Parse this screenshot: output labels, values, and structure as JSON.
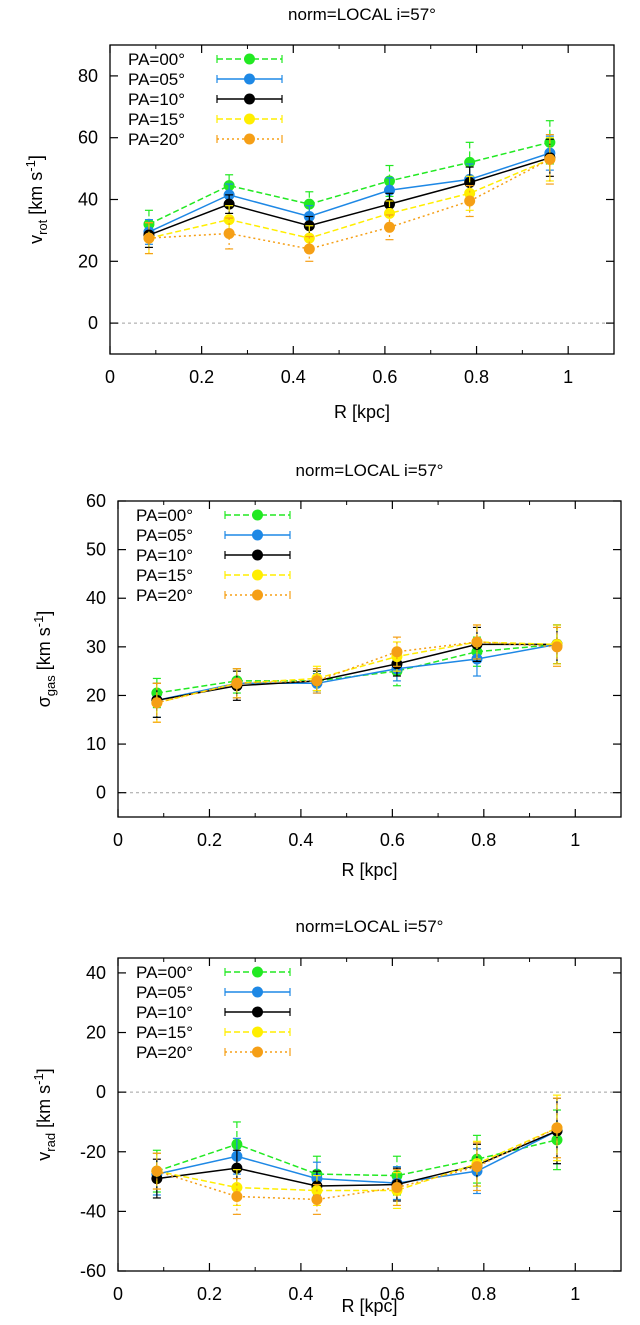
{
  "colors": {
    "PA=00°": "#22e922",
    "PA=05°": "#1e88e5",
    "PA=10°": "#000000",
    "PA=15°": "#ffee00",
    "PA=20°": "#f59f16",
    "zero_line": "#a0a0a0"
  },
  "chart_data": [
    {
      "type": "line",
      "title": "norm=LOCAL i=57°",
      "xlabel": "R [kpc]",
      "ylabel": {
        "base": "v",
        "sub": "rot",
        "unit_pre": " [km s",
        "sup": "-1",
        "unit_post": "]"
      },
      "xlim": [
        0,
        1.1
      ],
      "ylim": [
        -10,
        90
      ],
      "xticks": [
        0,
        0.2,
        0.4,
        0.6,
        0.8,
        1
      ],
      "xticklabels": [
        "0",
        "0.2",
        "0.4",
        "0.6",
        "0.8",
        "1"
      ],
      "yticks": [
        0,
        20,
        40,
        60,
        80
      ],
      "yticklabels": [
        "0",
        "20",
        "40",
        "60",
        "80"
      ],
      "zero_line": true,
      "legend_position": "top-left",
      "x": [
        0.085,
        0.26,
        0.435,
        0.61,
        0.785,
        0.96
      ],
      "series": [
        {
          "name": "PA=00°",
          "values": [
            32,
            44.5,
            38.5,
            46,
            52,
            58.5
          ],
          "errors": [
            4.5,
            3.5,
            4,
            5,
            6.5,
            7
          ],
          "line_style": "dashed"
        },
        {
          "name": "PA=05°",
          "values": [
            29.5,
            41.5,
            34.5,
            43,
            46.5,
            55
          ],
          "errors": [
            4,
            3.5,
            3.5,
            4,
            5,
            5.5
          ],
          "line_style": "solid"
        },
        {
          "name": "PA=10°",
          "values": [
            28.5,
            38.5,
            31.5,
            38.5,
            45.5,
            53.5
          ],
          "errors": [
            4,
            3,
            3,
            3.5,
            5,
            6
          ],
          "line_style": "solid"
        },
        {
          "name": "PA=15°",
          "values": [
            27.5,
            33.5,
            27.5,
            35.5,
            42,
            53
          ],
          "errors": [
            5,
            4.5,
            4,
            4,
            5.5,
            7
          ],
          "line_style": "dashed"
        },
        {
          "name": "PA=20°",
          "values": [
            27.5,
            29,
            24,
            31,
            39.5,
            53
          ],
          "errors": [
            5,
            5,
            4,
            4,
            5,
            8
          ],
          "line_style": "dotted"
        }
      ]
    },
    {
      "type": "line",
      "title": "norm=LOCAL i=57°",
      "xlabel": "R [kpc]",
      "ylabel": {
        "base": "σ",
        "sub": "gas",
        "unit_pre": " [km s",
        "sup": "-1",
        "unit_post": "]"
      },
      "xlim": [
        0,
        1.1
      ],
      "ylim": [
        -5,
        60
      ],
      "xticks": [
        0,
        0.2,
        0.4,
        0.6,
        0.8,
        1
      ],
      "xticklabels": [
        "0",
        "0.2",
        "0.4",
        "0.6",
        "0.8",
        "1"
      ],
      "yticks": [
        0,
        10,
        20,
        30,
        40,
        50,
        60
      ],
      "yticklabels": [
        "0",
        "10",
        "20",
        "30",
        "40",
        "50",
        "60"
      ],
      "zero_line": true,
      "legend_position": "top-left",
      "x": [
        0.085,
        0.26,
        0.435,
        0.61,
        0.785,
        0.96
      ],
      "series": [
        {
          "name": "PA=00°",
          "values": [
            20.5,
            23,
            23,
            25,
            29,
            30.5
          ],
          "errors": [
            3,
            2.5,
            2,
            3,
            3,
            4
          ],
          "line_style": "dashed"
        },
        {
          "name": "PA=05°",
          "values": [
            19,
            22.5,
            22.5,
            25.5,
            27.5,
            30.5
          ],
          "errors": [
            3.5,
            3,
            2,
            2.5,
            3.5,
            4
          ],
          "line_style": "solid"
        },
        {
          "name": "PA=10°",
          "values": [
            19,
            22,
            23,
            26.5,
            30.5,
            30.5
          ],
          "errors": [
            3.5,
            3,
            2,
            2.5,
            3.5,
            4
          ],
          "line_style": "solid"
        },
        {
          "name": "PA=15°",
          "values": [
            18.5,
            22.5,
            23.5,
            28,
            31,
            30.5
          ],
          "errors": [
            4,
            3,
            2.5,
            3,
            3.5,
            4
          ],
          "line_style": "dashed"
        },
        {
          "name": "PA=20°",
          "values": [
            18.5,
            22.5,
            23,
            29,
            31,
            30
          ],
          "errors": [
            4,
            3,
            2.5,
            3,
            3.5,
            4
          ],
          "line_style": "dotted"
        }
      ]
    },
    {
      "type": "line",
      "title": "norm=LOCAL i=57°",
      "xlabel": "R [kpc]",
      "ylabel": {
        "base": "v",
        "sub": "rad",
        "unit_pre": " [km s",
        "sup": "-1",
        "unit_post": "]"
      },
      "xlim": [
        0,
        1.1
      ],
      "ylim": [
        -60,
        45
      ],
      "xticks": [
        0,
        0.2,
        0.4,
        0.6,
        0.8,
        1
      ],
      "xticklabels": [
        "0",
        "0.2",
        "0.4",
        "0.6",
        "0.8",
        "1"
      ],
      "yticks": [
        -60,
        -40,
        -20,
        0,
        20,
        40
      ],
      "yticklabels": [
        "-60",
        "-40",
        "-20",
        "0",
        "20",
        "40"
      ],
      "zero_line": true,
      "legend_position": "top-left",
      "x": [
        0.085,
        0.26,
        0.435,
        0.61,
        0.785,
        0.96
      ],
      "series": [
        {
          "name": "PA=00°",
          "values": [
            -26.5,
            -17.5,
            -27.5,
            -28,
            -22.5,
            -16
          ],
          "errors": [
            7,
            7.5,
            6,
            6.5,
            8,
            10
          ],
          "line_style": "dashed"
        },
        {
          "name": "PA=05°",
          "values": [
            -27.5,
            -21.5,
            -29,
            -30.5,
            -26.5,
            -13
          ],
          "errors": [
            7,
            6,
            5.5,
            5.5,
            7.5,
            11
          ],
          "line_style": "solid"
        },
        {
          "name": "PA=10°",
          "values": [
            -29,
            -25.5,
            -31.5,
            -31,
            -24.5,
            -13
          ],
          "errors": [
            6.5,
            6,
            5,
            5.5,
            7,
            11
          ],
          "line_style": "solid"
        },
        {
          "name": "PA=15°",
          "values": [
            -26.5,
            -32,
            -33,
            -33,
            -24,
            -12
          ],
          "errors": [
            6,
            6,
            5,
            6,
            7.5,
            11
          ],
          "line_style": "dashed"
        },
        {
          "name": "PA=20°",
          "values": [
            -26.5,
            -35,
            -36,
            -32,
            -25,
            -12
          ],
          "errors": [
            6,
            6,
            5,
            6,
            8,
            10
          ],
          "line_style": "dotted"
        }
      ]
    }
  ]
}
